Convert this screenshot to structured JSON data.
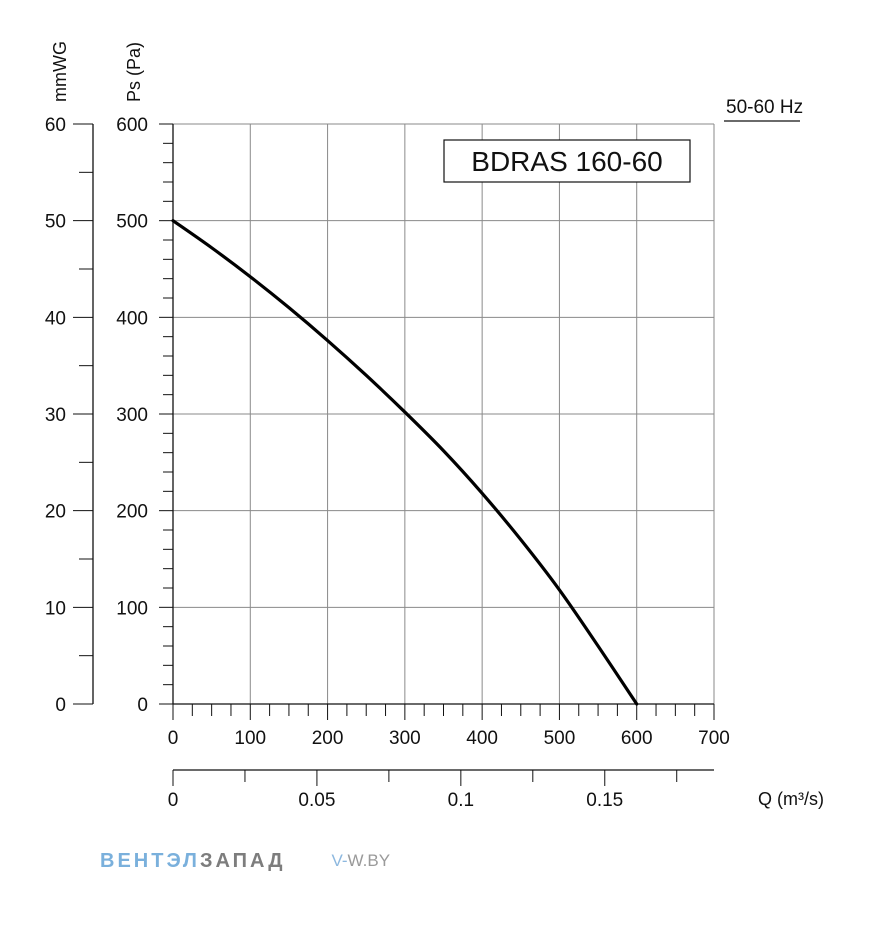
{
  "chart_data": {
    "type": "line",
    "title": "BDRAS 160-60",
    "frequency_label": "50-60 Hz",
    "x": {
      "label": "",
      "lim": [
        0,
        700
      ],
      "ticks": [
        "0",
        "100",
        "200",
        "300",
        "400",
        "500",
        "600",
        "700"
      ],
      "tick_values": [
        0,
        100,
        200,
        300,
        400,
        500,
        600,
        700
      ]
    },
    "x2": {
      "label": "Q (m³/s)",
      "ticks": [
        "0",
        "0.05",
        "0.1",
        "0.15"
      ],
      "tick_values": [
        0,
        0.05,
        0.1,
        0.15
      ]
    },
    "y": {
      "label": "Ps (Pa)",
      "lim": [
        0,
        600
      ],
      "ticks": [
        "0",
        "100",
        "200",
        "300",
        "400",
        "500",
        "600"
      ],
      "tick_values": [
        0,
        100,
        200,
        300,
        400,
        500,
        600
      ]
    },
    "y2": {
      "label": "mmWG",
      "ticks": [
        "0",
        "10",
        "20",
        "30",
        "40",
        "50",
        "60"
      ],
      "tick_values": [
        0,
        10,
        20,
        30,
        40,
        50,
        60
      ]
    },
    "grid": true,
    "series": [
      {
        "color": "#000000",
        "x": [
          0,
          50,
          100,
          150,
          200,
          250,
          300,
          350,
          400,
          450,
          500,
          550,
          600
        ],
        "y": [
          500,
          472,
          442,
          410,
          376,
          340,
          302,
          262,
          218,
          170,
          118,
          60,
          0
        ]
      }
    ]
  },
  "watermark": {
    "part1": "ВЕНТЭЛ",
    "part2": "ЗАПАД",
    "site1": "V-",
    "site2": "W.BY"
  }
}
